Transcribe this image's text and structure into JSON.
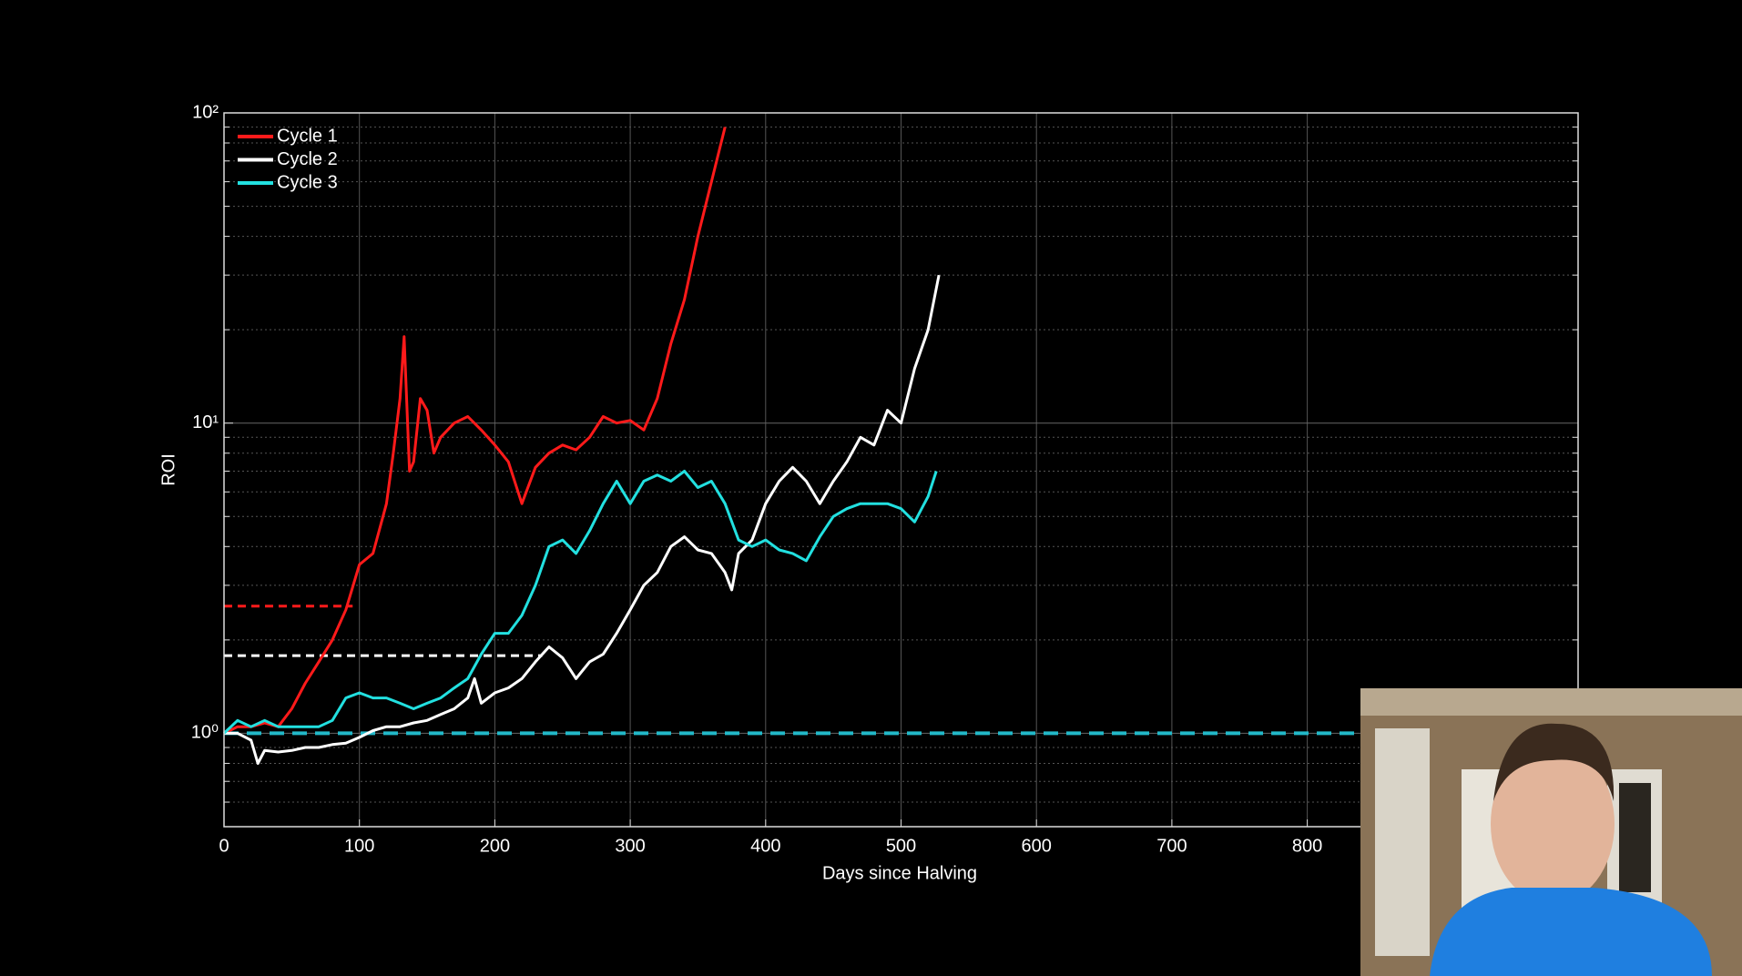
{
  "chart_data": {
    "type": "line",
    "xlabel": "Days since Halving",
    "ylabel": "ROI",
    "log_y": true,
    "grid": true,
    "legend": "upper-left",
    "xlim": [
      0,
      1000
    ],
    "ylim": [
      0.5,
      100
    ],
    "xticks": [
      0,
      100,
      200,
      300,
      400,
      500,
      600,
      700,
      800
    ],
    "yticks": [
      {
        "value": 1,
        "label": "10⁰"
      },
      {
        "value": 10,
        "label": "10¹"
      },
      {
        "value": 100,
        "label": "10²"
      }
    ],
    "yminorticks": [
      0.6,
      0.7,
      0.8,
      0.9,
      2,
      3,
      4,
      5,
      6,
      7,
      8,
      9,
      20,
      30,
      40,
      50,
      60,
      70,
      80,
      90
    ],
    "series": [
      {
        "name": "Cycle 1",
        "color": "#ff1a1a",
        "x": [
          0,
          10,
          20,
          30,
          40,
          50,
          60,
          70,
          80,
          90,
          100,
          110,
          120,
          125,
          130,
          133,
          137,
          140,
          145,
          150,
          155,
          160,
          170,
          180,
          190,
          200,
          210,
          220,
          230,
          240,
          250,
          260,
          270,
          280,
          290,
          300,
          310,
          320,
          330,
          340,
          350,
          360,
          370
        ],
        "values": [
          1.0,
          1.05,
          1.05,
          1.08,
          1.05,
          1.2,
          1.45,
          1.7,
          2.0,
          2.5,
          3.5,
          3.8,
          5.5,
          8,
          12,
          19,
          7,
          7.5,
          12,
          11,
          8,
          9,
          10,
          10.5,
          9.5,
          8.5,
          7.5,
          5.5,
          7.2,
          8,
          8.5,
          8.2,
          9,
          10.5,
          10,
          10.2,
          9.5,
          12,
          18,
          25,
          40,
          60,
          90
        ]
      },
      {
        "name": "Cycle 2",
        "color": "#ffffff",
        "x": [
          0,
          10,
          20,
          25,
          30,
          40,
          50,
          60,
          70,
          80,
          90,
          100,
          110,
          120,
          130,
          140,
          150,
          160,
          170,
          180,
          185,
          190,
          200,
          210,
          220,
          230,
          240,
          250,
          260,
          270,
          280,
          290,
          300,
          310,
          320,
          330,
          340,
          350,
          360,
          370,
          375,
          380,
          390,
          400,
          410,
          420,
          430,
          440,
          450,
          460,
          470,
          480,
          490,
          500,
          510,
          520,
          528
        ],
        "values": [
          1.0,
          1.0,
          0.95,
          0.8,
          0.88,
          0.87,
          0.88,
          0.9,
          0.9,
          0.92,
          0.93,
          0.97,
          1.02,
          1.05,
          1.05,
          1.08,
          1.1,
          1.15,
          1.2,
          1.3,
          1.5,
          1.25,
          1.35,
          1.4,
          1.5,
          1.7,
          1.9,
          1.75,
          1.5,
          1.7,
          1.8,
          2.1,
          2.5,
          3.0,
          3.3,
          4.0,
          4.3,
          3.9,
          3.8,
          3.3,
          2.9,
          3.8,
          4.2,
          5.5,
          6.5,
          7.2,
          6.5,
          5.5,
          6.5,
          7.5,
          9,
          8.5,
          11,
          10,
          15,
          20,
          30
        ]
      },
      {
        "name": "Cycle 3",
        "color": "#22e0e0",
        "x": [
          0,
          10,
          20,
          30,
          40,
          50,
          60,
          70,
          80,
          90,
          100,
          110,
          120,
          130,
          140,
          150,
          160,
          170,
          180,
          190,
          200,
          210,
          220,
          230,
          240,
          250,
          260,
          270,
          280,
          290,
          300,
          310,
          320,
          330,
          340,
          350,
          360,
          370,
          380,
          390,
          400,
          410,
          420,
          430,
          440,
          450,
          460,
          470,
          480,
          490,
          500,
          510,
          520,
          526
        ],
        "values": [
          1.0,
          1.1,
          1.05,
          1.1,
          1.05,
          1.05,
          1.05,
          1.05,
          1.1,
          1.3,
          1.35,
          1.3,
          1.3,
          1.25,
          1.2,
          1.25,
          1.3,
          1.4,
          1.5,
          1.8,
          2.1,
          2.1,
          2.4,
          3.0,
          4.0,
          4.2,
          3.8,
          4.5,
          5.5,
          6.5,
          5.5,
          6.5,
          6.8,
          6.5,
          7.0,
          6.2,
          6.5,
          5.5,
          4.2,
          4.0,
          4.2,
          3.9,
          3.8,
          3.6,
          4.3,
          5.0,
          5.3,
          5.5,
          5.5,
          5.5,
          5.3,
          4.8,
          5.8,
          7.0
        ]
      }
    ],
    "hlines": [
      {
        "y": 2.57,
        "x": [
          0,
          95
        ],
        "color": "#ff1a1a"
      },
      {
        "y": 1.78,
        "x": [
          0,
          235
        ],
        "color": "#ffffff"
      },
      {
        "y": 1.0,
        "x": [
          0,
          1000
        ],
        "color": "#22b8c8"
      }
    ]
  }
}
